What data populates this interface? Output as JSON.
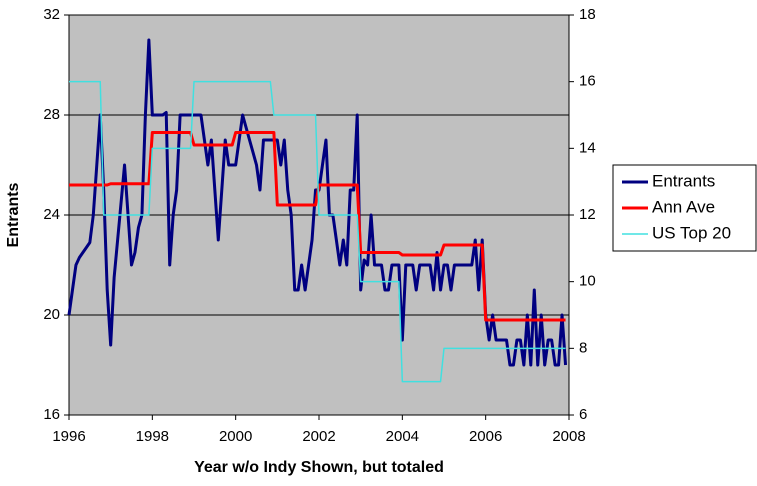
{
  "chart_data": {
    "type": "line",
    "xlabel": "Year w/o Indy Shown, but totaled",
    "ylabel": "Entrants",
    "x": [
      1996,
      1996.083,
      1996.167,
      1996.25,
      1996.333,
      1996.417,
      1996.5,
      1996.583,
      1996.667,
      1996.75,
      1996.833,
      1996.917,
      1997,
      1997.083,
      1997.167,
      1997.25,
      1997.333,
      1997.417,
      1997.5,
      1997.583,
      1997.667,
      1997.75,
      1997.833,
      1997.917,
      1998,
      1998.083,
      1998.167,
      1998.25,
      1998.333,
      1998.417,
      1998.5,
      1998.583,
      1998.667,
      1998.75,
      1998.833,
      1998.917,
      1999,
      1999.083,
      1999.167,
      1999.25,
      1999.333,
      1999.417,
      1999.5,
      1999.583,
      1999.667,
      1999.75,
      1999.833,
      1999.917,
      2000,
      2000.083,
      2000.167,
      2000.25,
      2000.333,
      2000.417,
      2000.5,
      2000.583,
      2000.667,
      2000.75,
      2000.833,
      2000.917,
      2001,
      2001.083,
      2001.167,
      2001.25,
      2001.333,
      2001.417,
      2001.5,
      2001.583,
      2001.667,
      2001.75,
      2001.833,
      2001.917,
      2002,
      2002.083,
      2002.167,
      2002.25,
      2002.333,
      2002.417,
      2002.5,
      2002.583,
      2002.667,
      2002.75,
      2002.833,
      2002.917,
      2003,
      2003.083,
      2003.167,
      2003.25,
      2003.333,
      2003.417,
      2003.5,
      2003.583,
      2003.667,
      2003.75,
      2003.833,
      2003.917,
      2004,
      2004.083,
      2004.167,
      2004.25,
      2004.333,
      2004.417,
      2004.5,
      2004.583,
      2004.667,
      2004.75,
      2004.833,
      2004.917,
      2005,
      2005.083,
      2005.167,
      2005.25,
      2005.333,
      2005.417,
      2005.5,
      2005.583,
      2005.667,
      2005.75,
      2005.833,
      2005.917,
      2006,
      2006.083,
      2006.167,
      2006.25,
      2006.333,
      2006.417,
      2006.5,
      2006.583,
      2006.667,
      2006.75,
      2006.833,
      2006.917,
      2007,
      2007.083,
      2007.167,
      2007.25,
      2007.333,
      2007.417,
      2007.5,
      2007.583,
      2007.667,
      2007.75,
      2007.833,
      2007.917
    ],
    "series": [
      {
        "name": "Entrants",
        "color": "#000080",
        "width": 3,
        "values": [
          20,
          21,
          22,
          22.3,
          22.5,
          22.7,
          22.9,
          24,
          26,
          28,
          25,
          21,
          18.8,
          21.5,
          23,
          24.5,
          26,
          24,
          22,
          22.5,
          23.5,
          24,
          28,
          31,
          28,
          28,
          28,
          28,
          28.1,
          22,
          24,
          25,
          28,
          28,
          28,
          28,
          28,
          28,
          28,
          27,
          26,
          27,
          25,
          23,
          25,
          27,
          26,
          26,
          26,
          27,
          28,
          27.5,
          27,
          26.5,
          26,
          25,
          27,
          27,
          27,
          27,
          27,
          26,
          27,
          25,
          24,
          21,
          21,
          22,
          21,
          22,
          23,
          25,
          25,
          26,
          27,
          24,
          24,
          23,
          22,
          23,
          22,
          25,
          25,
          28,
          21,
          22.2,
          22,
          24,
          22,
          22,
          22,
          21,
          21,
          22,
          22,
          22,
          19,
          22,
          22,
          22,
          21,
          22,
          22,
          22,
          22,
          21,
          22.5,
          21,
          22,
          22,
          21,
          22,
          22,
          22,
          22,
          22,
          22,
          23,
          21,
          23,
          20,
          19,
          20,
          19,
          19,
          19,
          19,
          18,
          18,
          19,
          19,
          18,
          20,
          18,
          21,
          18,
          20,
          18,
          19,
          19,
          18,
          18,
          20,
          18
        ]
      },
      {
        "name": "Ann Ave",
        "color": "#ff0000",
        "width": 3,
        "values": [
          25.2,
          25.2,
          25.2,
          25.2,
          25.2,
          25.2,
          25.2,
          25.2,
          25.2,
          25.2,
          25.2,
          25.2,
          25.25,
          25.25,
          25.25,
          25.25,
          25.25,
          25.25,
          25.25,
          25.25,
          25.25,
          25.25,
          25.25,
          25.25,
          27.3,
          27.3,
          27.3,
          27.3,
          27.3,
          27.3,
          27.3,
          27.3,
          27.3,
          27.3,
          27.3,
          27.3,
          26.8,
          26.8,
          26.8,
          26.8,
          26.8,
          26.8,
          26.8,
          26.8,
          26.8,
          26.8,
          26.8,
          26.8,
          27.3,
          27.3,
          27.3,
          27.3,
          27.3,
          27.3,
          27.3,
          27.3,
          27.3,
          27.3,
          27.3,
          27.3,
          24.4,
          24.4,
          24.4,
          24.4,
          24.4,
          24.4,
          24.4,
          24.4,
          24.4,
          24.4,
          24.4,
          24.4,
          25.2,
          25.2,
          25.2,
          25.2,
          25.2,
          25.2,
          25.2,
          25.2,
          25.2,
          25.2,
          25.2,
          25.2,
          22.5,
          22.5,
          22.5,
          22.5,
          22.5,
          22.5,
          22.5,
          22.5,
          22.5,
          22.5,
          22.5,
          22.5,
          22.4,
          22.4,
          22.4,
          22.4,
          22.4,
          22.4,
          22.4,
          22.4,
          22.4,
          22.4,
          22.4,
          22.4,
          22.8,
          22.8,
          22.8,
          22.8,
          22.8,
          22.8,
          22.8,
          22.8,
          22.8,
          22.8,
          22.8,
          22.8,
          19.8,
          19.8,
          19.8,
          19.8,
          19.8,
          19.8,
          19.8,
          19.8,
          19.8,
          19.8,
          19.8,
          19.8,
          19.8,
          19.8,
          19.8,
          19.8,
          19.8,
          19.8,
          19.8,
          19.8,
          19.8,
          19.8,
          19.8,
          19.8
        ]
      },
      {
        "name": "US Top 20",
        "color": "#40e0e0",
        "width": 1.5,
        "axis": "y2",
        "values": [
          16,
          16,
          16,
          16,
          16,
          16,
          16,
          16,
          16,
          16,
          12,
          12,
          12,
          12,
          12,
          12,
          12,
          12,
          12,
          12,
          12,
          12,
          12,
          12,
          14,
          14,
          14,
          14,
          14,
          14,
          14,
          14,
          14,
          14,
          14,
          14,
          16,
          16,
          16,
          16,
          16,
          16,
          16,
          16,
          16,
          16,
          16,
          16,
          16,
          16,
          16,
          16,
          16,
          16,
          16,
          16,
          16,
          16,
          16,
          15,
          15,
          15,
          15,
          15,
          15,
          15,
          15,
          15,
          15,
          15,
          15,
          15,
          12,
          12,
          12,
          12,
          12,
          12,
          12,
          12,
          12,
          12,
          12,
          12,
          10,
          10,
          10,
          10,
          10,
          10,
          10,
          10,
          10,
          10,
          10,
          10,
          7,
          7,
          7,
          7,
          7,
          7,
          7,
          7,
          7,
          7,
          7,
          7,
          8,
          8,
          8,
          8,
          8,
          8,
          8,
          8,
          8,
          8,
          8,
          8,
          8,
          8,
          8,
          8,
          8,
          8,
          8,
          8,
          8,
          8,
          8,
          8,
          8,
          8,
          8,
          8,
          8,
          8,
          8,
          8,
          8,
          8,
          8,
          8
        ]
      }
    ],
    "xlim": [
      1996,
      2008
    ],
    "xticks": [
      1996,
      1998,
      2000,
      2002,
      2004,
      2006,
      2008
    ],
    "ylim": [
      16,
      32
    ],
    "yticks": [
      16,
      20,
      24,
      28,
      32
    ],
    "y2lim": [
      6,
      18
    ],
    "y2ticks": [
      6,
      8,
      10,
      12,
      14,
      16,
      18
    ],
    "grid": true,
    "legend": "right",
    "plot_color": "#c0c0c0"
  }
}
